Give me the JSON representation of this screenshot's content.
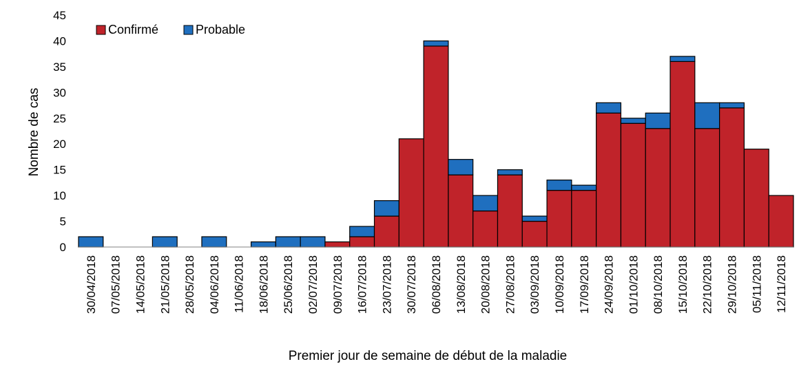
{
  "chart_data": {
    "type": "bar",
    "stacked": true,
    "title": "",
    "xlabel": "Premier jour de semaine de début de la maladie",
    "ylabel": "Nombre de cas",
    "ylim": [
      0,
      45
    ],
    "yticks": [
      "0",
      "5",
      "10",
      "15",
      "20",
      "25",
      "30",
      "35",
      "40",
      "45"
    ],
    "grid": false,
    "legend_position": "top-left",
    "categories": [
      "30/04/2018",
      "07/05/2018",
      "14/05/2018",
      "21/05/2018",
      "28/05/2018",
      "04/06/2018",
      "11/06/2018",
      "18/06/2018",
      "25/06/2018",
      "02/07/2018",
      "09/07/2018",
      "16/07/2018",
      "23/07/2018",
      "30/07/2018",
      "06/08/2018",
      "13/08/2018",
      "20/08/2018",
      "27/08/2018",
      "03/09/2018",
      "10/09/2018",
      "17/09/2018",
      "24/09/2018",
      "01/10/2018",
      "08/10/2018",
      "15/10/2018",
      "22/10/2018",
      "29/10/2018",
      "05/11/2018",
      "12/11/2018"
    ],
    "series": [
      {
        "name": "Confirmé",
        "color": "#c0232a",
        "values": [
          0,
          0,
          0,
          0,
          0,
          0,
          0,
          0,
          0,
          0,
          1,
          2,
          6,
          21,
          39,
          14,
          7,
          14,
          5,
          11,
          11,
          26,
          24,
          23,
          36,
          23,
          27,
          19,
          10
        ]
      },
      {
        "name": "Probable",
        "color": "#1f6fbf",
        "values": [
          2,
          0,
          0,
          2,
          0,
          2,
          0,
          1,
          2,
          2,
          0,
          2,
          3,
          0,
          1,
          3,
          3,
          1,
          1,
          2,
          1,
          2,
          1,
          3,
          1,
          5,
          1,
          0,
          0
        ]
      }
    ]
  }
}
